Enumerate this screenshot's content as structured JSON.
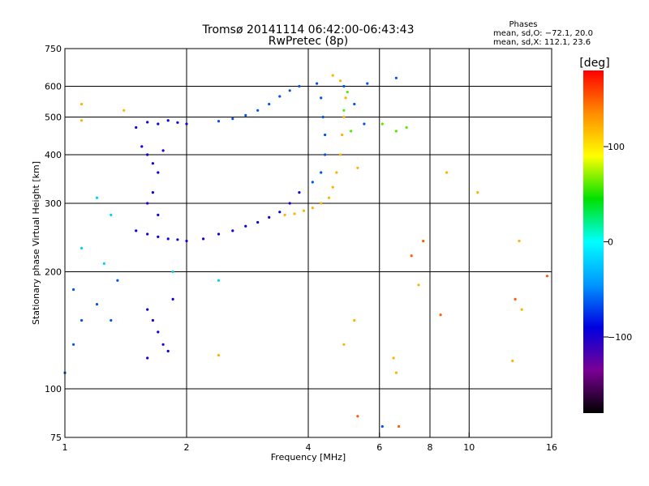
{
  "chart_data": {
    "type": "scatter",
    "title": "Tromsø 20141114 06:42:00-06:43:43",
    "subtitle": "RwPretec (8p)",
    "xlabel": "Frequency [MHz]",
    "ylabel": "Stationary phase Virtual Height [km]",
    "x_scale": "log",
    "y_scale": "log",
    "xlim": [
      1,
      16
    ],
    "ylim": [
      75,
      750
    ],
    "x_ticks": [
      1,
      2,
      4,
      6,
      8,
      10,
      16
    ],
    "x_tick_labels": [
      "1",
      "2",
      "4",
      "6",
      "8",
      "10",
      "16"
    ],
    "x_grid": [
      2,
      4,
      6,
      8,
      10
    ],
    "y_ticks": [
      75,
      100,
      200,
      300,
      400,
      500,
      600,
      750
    ],
    "y_tick_labels": [
      "75",
      "100",
      "200",
      "300",
      "400",
      "500",
      "600",
      "750"
    ],
    "y_grid": [
      100,
      200,
      300,
      400,
      500,
      600
    ],
    "grid": true,
    "legend": {
      "heading": "Phases",
      "lines": [
        "mean, sd,O: −72.1, 20.0",
        "mean, sd,X: 112.1, 23.6"
      ]
    },
    "colorbar": {
      "label": "[deg]",
      "range": [
        -180,
        180
      ],
      "ticks": [
        100,
        0,
        -100
      ],
      "tick_labels": [
        "100",
        "0",
        "−100"
      ],
      "colormap": [
        "#000000",
        "#7a0094",
        "#0000e0",
        "#0096ff",
        "#00ffff",
        "#00e000",
        "#ffff00",
        "#ff8c00",
        "#ff0000"
      ]
    },
    "series": [
      {
        "phase_deg": -95,
        "points": [
          [
            1.5,
            470
          ],
          [
            1.6,
            485
          ],
          [
            1.7,
            480
          ],
          [
            1.8,
            490
          ],
          [
            1.9,
            484
          ],
          [
            2.0,
            480
          ],
          [
            1.55,
            420
          ],
          [
            1.6,
            400
          ],
          [
            1.65,
            380
          ],
          [
            1.7,
            360
          ],
          [
            1.75,
            410
          ],
          [
            1.5,
            255
          ],
          [
            1.6,
            250
          ],
          [
            1.7,
            246
          ],
          [
            1.8,
            243
          ],
          [
            1.9,
            242
          ],
          [
            2.0,
            240
          ],
          [
            2.2,
            243
          ],
          [
            2.4,
            250
          ],
          [
            2.6,
            255
          ],
          [
            2.8,
            262
          ],
          [
            3.0,
            268
          ],
          [
            3.2,
            276
          ],
          [
            3.4,
            285
          ],
          [
            3.6,
            300
          ],
          [
            3.8,
            320
          ],
          [
            1.6,
            300
          ],
          [
            1.65,
            320
          ],
          [
            1.7,
            280
          ],
          [
            1.6,
            160
          ],
          [
            1.65,
            150
          ],
          [
            1.7,
            140
          ],
          [
            1.75,
            130
          ],
          [
            1.8,
            125
          ],
          [
            1.85,
            170
          ],
          [
            1.6,
            120
          ]
        ]
      },
      {
        "phase_deg": -65,
        "points": [
          [
            2.4,
            488
          ],
          [
            2.6,
            495
          ],
          [
            2.8,
            505
          ],
          [
            3.0,
            520
          ],
          [
            3.2,
            540
          ],
          [
            3.4,
            565
          ],
          [
            3.6,
            585
          ],
          [
            3.8,
            600
          ],
          [
            4.2,
            610
          ],
          [
            4.3,
            560
          ],
          [
            4.35,
            500
          ],
          [
            4.4,
            450
          ],
          [
            4.4,
            400
          ],
          [
            4.3,
            360
          ],
          [
            4.1,
            340
          ],
          [
            1.05,
            180
          ],
          [
            1.1,
            150
          ],
          [
            1.05,
            130
          ],
          [
            1.0,
            110
          ],
          [
            1.2,
            165
          ],
          [
            1.3,
            150
          ],
          [
            1.35,
            190
          ],
          [
            4.9,
            600
          ],
          [
            5.2,
            540
          ],
          [
            5.5,
            480
          ],
          [
            5.6,
            610
          ],
          [
            6.1,
            80
          ],
          [
            6.6,
            630
          ]
        ]
      },
      {
        "phase_deg": -20,
        "points": [
          [
            1.2,
            310
          ],
          [
            1.3,
            280
          ],
          [
            1.1,
            230
          ],
          [
            1.25,
            210
          ],
          [
            1.85,
            200
          ],
          [
            2.4,
            190
          ]
        ]
      },
      {
        "phase_deg": 60,
        "points": [
          [
            5.0,
            580
          ],
          [
            4.9,
            520
          ],
          [
            5.1,
            460
          ],
          [
            6.1,
            480
          ],
          [
            6.6,
            460
          ],
          [
            7.0,
            470
          ]
        ]
      },
      {
        "phase_deg": 120,
        "points": [
          [
            3.5,
            280
          ],
          [
            3.7,
            282
          ],
          [
            3.9,
            287
          ],
          [
            4.1,
            292
          ],
          [
            4.3,
            300
          ],
          [
            4.5,
            310
          ],
          [
            4.6,
            330
          ],
          [
            4.7,
            360
          ],
          [
            4.8,
            400
          ],
          [
            4.85,
            450
          ],
          [
            4.9,
            500
          ],
          [
            4.95,
            560
          ],
          [
            4.8,
            620
          ],
          [
            4.6,
            640
          ],
          [
            1.1,
            540
          ],
          [
            1.1,
            490
          ],
          [
            1.4,
            520
          ],
          [
            5.3,
            370
          ],
          [
            8.8,
            360
          ],
          [
            10.5,
            320
          ],
          [
            13.3,
            240
          ],
          [
            2.4,
            122
          ],
          [
            4.9,
            130
          ],
          [
            5.2,
            150
          ],
          [
            6.5,
            120
          ],
          [
            6.6,
            110
          ],
          [
            12.8,
            118
          ],
          [
            13.5,
            160
          ],
          [
            7.5,
            185
          ]
        ]
      },
      {
        "phase_deg": 150,
        "points": [
          [
            5.3,
            85
          ],
          [
            6.7,
            80
          ],
          [
            7.2,
            220
          ],
          [
            7.7,
            240
          ],
          [
            8.5,
            155
          ],
          [
            13.0,
            170
          ],
          [
            15.6,
            195
          ]
        ]
      }
    ]
  }
}
